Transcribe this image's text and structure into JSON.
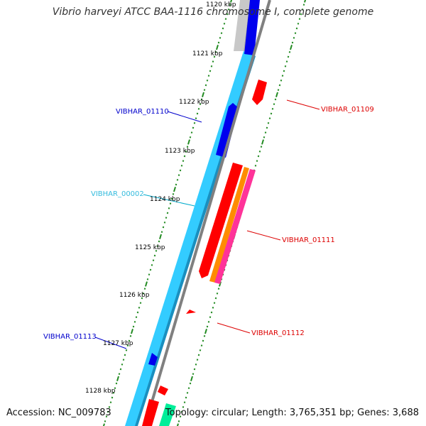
{
  "title": "Vibrio harveyi ATCC BAA-1116 chromosome I, complete genome",
  "footer": {
    "accession": "Accession: NC_009783",
    "summary": "Topology: circular; Length: 3,765,351 bp; Genes: 3,688"
  },
  "kbp_labels": [
    "1120 kbp",
    "1121 kbp",
    "1122 kbp",
    "1123 kbp",
    "1124 kbp",
    "1125 kbp",
    "1126 kbp",
    "1127 kbp",
    "1128 kbp"
  ],
  "gene_labels": {
    "vibhar_01110": "VIBHAR_01110",
    "vibhar_00002": "VIBHAR_00002",
    "vibhar_01113": "VIBHAR_01113",
    "vibhar_01109": "VIBHAR_01109",
    "vibhar_01111": "VIBHAR_01111",
    "vibhar_01112": "VIBHAR_01112"
  },
  "colors": {
    "blue_gene": "#0000ee",
    "cyan_track": "#33ccff",
    "red_gene": "#ff0000",
    "orange_gene": "#ff8c00",
    "pink_gene": "#ff3399",
    "teal_gene": "#00ee99",
    "tick_green": "#228b22",
    "backbone": "#808080"
  }
}
